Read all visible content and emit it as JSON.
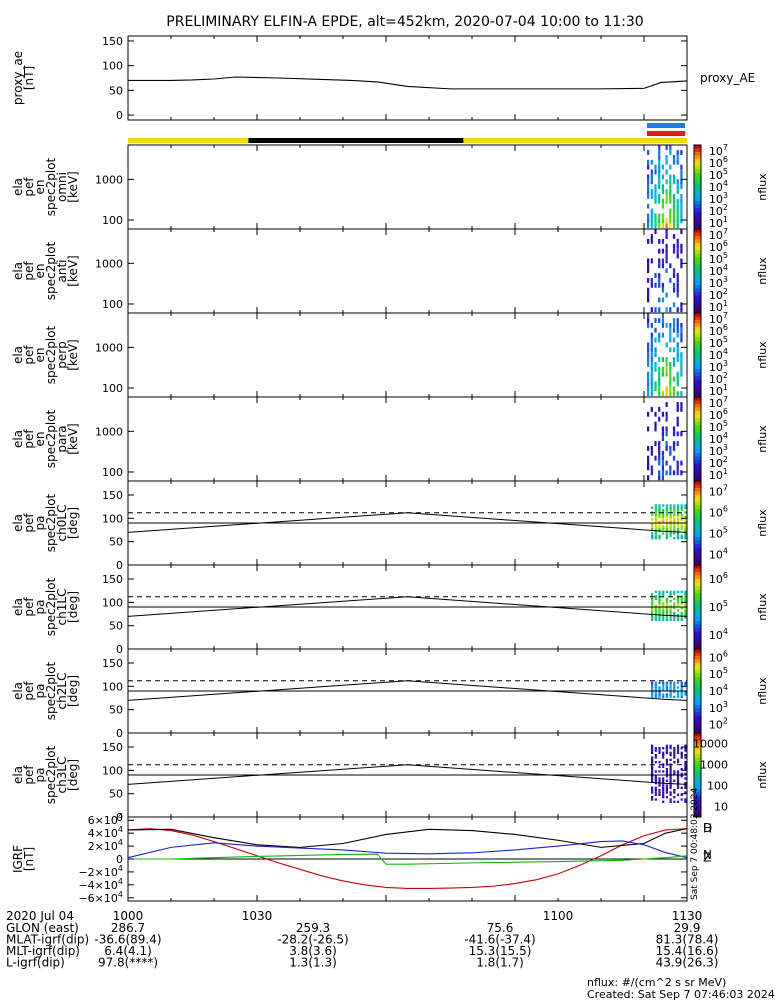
{
  "title": "PRELIMINARY ELFIN-A EPDE, alt=452km, 2020-07-04 10:00 to 11:30",
  "footer": {
    "units": "nflux: #/(cm^2 s sr MeV)",
    "created": "Created: Sat Sep  7 07:46:03 2024"
  },
  "side_stamp": "Sat Sep  7 00:48:03 2024",
  "ephemeris": {
    "date_label": "2020 Jul 04",
    "rows": [
      {
        "label": "GLON (east)",
        "values": [
          "286.7",
          "259.3",
          "75.6",
          "29.9"
        ]
      },
      {
        "label": "MLAT-igrf(dip)",
        "values": [
          "-36.6(89.4)",
          "-28.2(-26.5)",
          "-41.6(-37.4)",
          "81.3(78.4)"
        ]
      },
      {
        "label": "MLT-igrf(dip)",
        "values": [
          "6.4(4.1)",
          "3.8(3.6)",
          "15.3(15.5)",
          "15.4(16.6)"
        ]
      },
      {
        "label": "L-igrf(dip)",
        "values": [
          "97.8(****)",
          "1.3(1.3)",
          "1.8(1.7)",
          "43.9(26.3)"
        ]
      }
    ]
  },
  "chart_data": [
    {
      "type": "line",
      "panel": "proxy_ae",
      "ylabel": [
        "proxy_ae",
        "[nT]"
      ],
      "legend": "proxy_AE",
      "ylim": [
        -10,
        160
      ],
      "yticks": [
        "0",
        "50",
        "100",
        "150"
      ],
      "ytick_values": [
        0,
        50,
        100,
        150
      ],
      "x": [
        1000,
        1010,
        1015,
        1020,
        1025,
        1035,
        1045,
        1052,
        1058,
        1065,
        1075,
        1090,
        1110,
        1120,
        1124,
        1130
      ],
      "values": [
        70,
        70,
        71,
        73,
        77,
        75,
        72,
        70,
        67,
        58,
        53,
        53,
        53,
        54,
        66,
        69
      ],
      "color": "#000000"
    },
    {
      "type": "heatmap",
      "panel": "omni",
      "ylabel": [
        "ela",
        "pef",
        "en",
        "spec2plot",
        "omni",
        "[keV]"
      ],
      "scale": "log",
      "ylim": [
        60,
        7000
      ],
      "yticks": [
        "100",
        "1000"
      ],
      "ytick_values": [
        100,
        1000
      ],
      "colorbar": {
        "label": "nflux",
        "ticks": [
          "10^1",
          "10^2",
          "10^3",
          "10^4",
          "10^5",
          "10^6",
          "10^7"
        ]
      }
    },
    {
      "type": "heatmap",
      "panel": "anti",
      "ylabel": [
        "ela",
        "pef",
        "en",
        "spec2plot",
        "anti",
        "[keV]"
      ],
      "scale": "log",
      "ylim": [
        60,
        7000
      ],
      "yticks": [
        "100",
        "1000"
      ],
      "ytick_values": [
        100,
        1000
      ],
      "colorbar": {
        "label": "nflux",
        "ticks": [
          "10^1",
          "10^2",
          "10^3",
          "10^4",
          "10^5",
          "10^6",
          "10^7"
        ]
      }
    },
    {
      "type": "heatmap",
      "panel": "perp",
      "ylabel": [
        "ela",
        "pef",
        "en",
        "spec2plot",
        "perp",
        "[keV]"
      ],
      "scale": "log",
      "ylim": [
        60,
        7000
      ],
      "yticks": [
        "100",
        "1000"
      ],
      "ytick_values": [
        100,
        1000
      ],
      "colorbar": {
        "label": "nflux",
        "ticks": [
          "10^1",
          "10^2",
          "10^3",
          "10^4",
          "10^5",
          "10^6",
          "10^7"
        ]
      }
    },
    {
      "type": "heatmap",
      "panel": "para",
      "ylabel": [
        "ela",
        "pef",
        "en",
        "spec2plot",
        "para",
        "[keV]"
      ],
      "scale": "log",
      "ylim": [
        60,
        7000
      ],
      "yticks": [
        "100",
        "1000"
      ],
      "ytick_values": [
        100,
        1000
      ],
      "colorbar": {
        "label": "nflux",
        "ticks": [
          "10^1",
          "10^2",
          "10^3",
          "10^4",
          "10^5",
          "10^6",
          "10^7"
        ]
      }
    },
    {
      "type": "heatmap",
      "panel": "ch0LC",
      "ylabel": [
        "ela",
        "pef",
        "pa",
        "spec2plot",
        "ch0LC",
        "[deg]"
      ],
      "ylim": [
        0,
        180
      ],
      "yticks": [
        "0",
        "50",
        "100",
        "150"
      ],
      "ytick_values": [
        0,
        50,
        100,
        150
      ],
      "colorbar": {
        "label": "nflux",
        "ticks": [
          "10^4",
          "10^5",
          "10^6",
          "10^7"
        ]
      }
    },
    {
      "type": "heatmap",
      "panel": "ch1LC",
      "ylabel": [
        "ela",
        "pef",
        "pa",
        "spec2plot",
        "ch1LC",
        "[deg]"
      ],
      "ylim": [
        0,
        180
      ],
      "yticks": [
        "0",
        "50",
        "100",
        "150"
      ],
      "ytick_values": [
        0,
        50,
        100,
        150
      ],
      "colorbar": {
        "label": "nflux",
        "ticks": [
          "10^4",
          "10^5",
          "10^6"
        ]
      }
    },
    {
      "type": "heatmap",
      "panel": "ch2LC",
      "ylabel": [
        "ela",
        "pef",
        "pa",
        "spec2plot",
        "ch2LC",
        "[deg]"
      ],
      "ylim": [
        0,
        180
      ],
      "yticks": [
        "0",
        "50",
        "100",
        "150"
      ],
      "ytick_values": [
        0,
        50,
        100,
        150
      ],
      "colorbar": {
        "label": "nflux",
        "ticks": [
          "10^2",
          "10^3",
          "10^4",
          "10^5",
          "10^6"
        ]
      }
    },
    {
      "type": "heatmap",
      "panel": "ch3LC",
      "ylabel": [
        "ela",
        "pef",
        "pa",
        "spec2plot",
        "ch3LC",
        "[deg]"
      ],
      "ylim": [
        0,
        180
      ],
      "yticks": [
        "0",
        "50",
        "100",
        "150"
      ],
      "ytick_values": [
        0,
        50,
        100,
        150
      ],
      "colorbar": {
        "label": "nflux",
        "ticks": [
          "10",
          "100",
          "1000",
          "10000"
        ]
      }
    },
    {
      "type": "line",
      "panel": "IGRF",
      "ylabel": [
        "IGRF",
        "[nT]"
      ],
      "ylim": [
        -65000,
        65000
      ],
      "yticks": [
        "6×10^4",
        "4×10^4",
        "2×10^4",
        "0",
        "−2×10^4",
        "−4×10^4",
        "−6×10^4"
      ],
      "ytick_values": [
        60000,
        40000,
        20000,
        0,
        -20000,
        -40000,
        -60000
      ],
      "xlabel_ticks": [
        "1000",
        "1030",
        "1100",
        "1130"
      ],
      "x_ticks": [
        1000,
        1030,
        1100,
        1130
      ],
      "series": [
        {
          "name": "D",
          "color": "#cc0000",
          "x": [
            1000,
            1005,
            1010,
            1015,
            1020,
            1025,
            1030,
            1035,
            1040,
            1045,
            1050,
            1055,
            1060,
            1065,
            1070,
            1075,
            1080,
            1085,
            1090,
            1095,
            1100,
            1105,
            1110,
            1115,
            1120,
            1125,
            1130
          ],
          "values": [
            45000,
            47000,
            44000,
            37000,
            27000,
            16000,
            5000,
            -6000,
            -16000,
            -26000,
            -34000,
            -40000,
            -44000,
            -45500,
            -45500,
            -45000,
            -44000,
            -42000,
            -38000,
            -32000,
            -23000,
            -10000,
            5000,
            22000,
            36000,
            45000,
            47000
          ]
        },
        {
          "name": "H",
          "color": "#000000",
          "x": [
            1000,
            1010,
            1020,
            1030,
            1040,
            1050,
            1060,
            1070,
            1080,
            1090,
            1100,
            1110,
            1120,
            1125,
            1130
          ],
          "values": [
            45000,
            46000,
            33000,
            22000,
            18000,
            24000,
            38000,
            46000,
            44000,
            38000,
            29000,
            18000,
            24000,
            40000,
            47000
          ]
        },
        {
          "name": "Z",
          "color": "#1f1fd6",
          "x": [
            1000,
            1010,
            1020,
            1030,
            1040,
            1050,
            1060,
            1070,
            1080,
            1090,
            1100,
            1110,
            1115,
            1120,
            1125,
            1130
          ],
          "values": [
            2000,
            18000,
            25000,
            20000,
            17000,
            14000,
            9000,
            8000,
            9500,
            14000,
            20000,
            27000,
            28000,
            22000,
            10000,
            2000
          ]
        },
        {
          "name": "N",
          "color": "#0fb80f",
          "x": [
            1000,
            1010,
            1020,
            1030,
            1040,
            1050,
            1058,
            1060,
            1065,
            1080,
            1100,
            1115,
            1125,
            1130
          ],
          "values": [
            0,
            0,
            2000,
            4000,
            5500,
            7000,
            7500,
            -8000,
            -8000,
            -6000,
            -4000,
            -2000,
            2000,
            5000
          ]
        }
      ]
    }
  ]
}
